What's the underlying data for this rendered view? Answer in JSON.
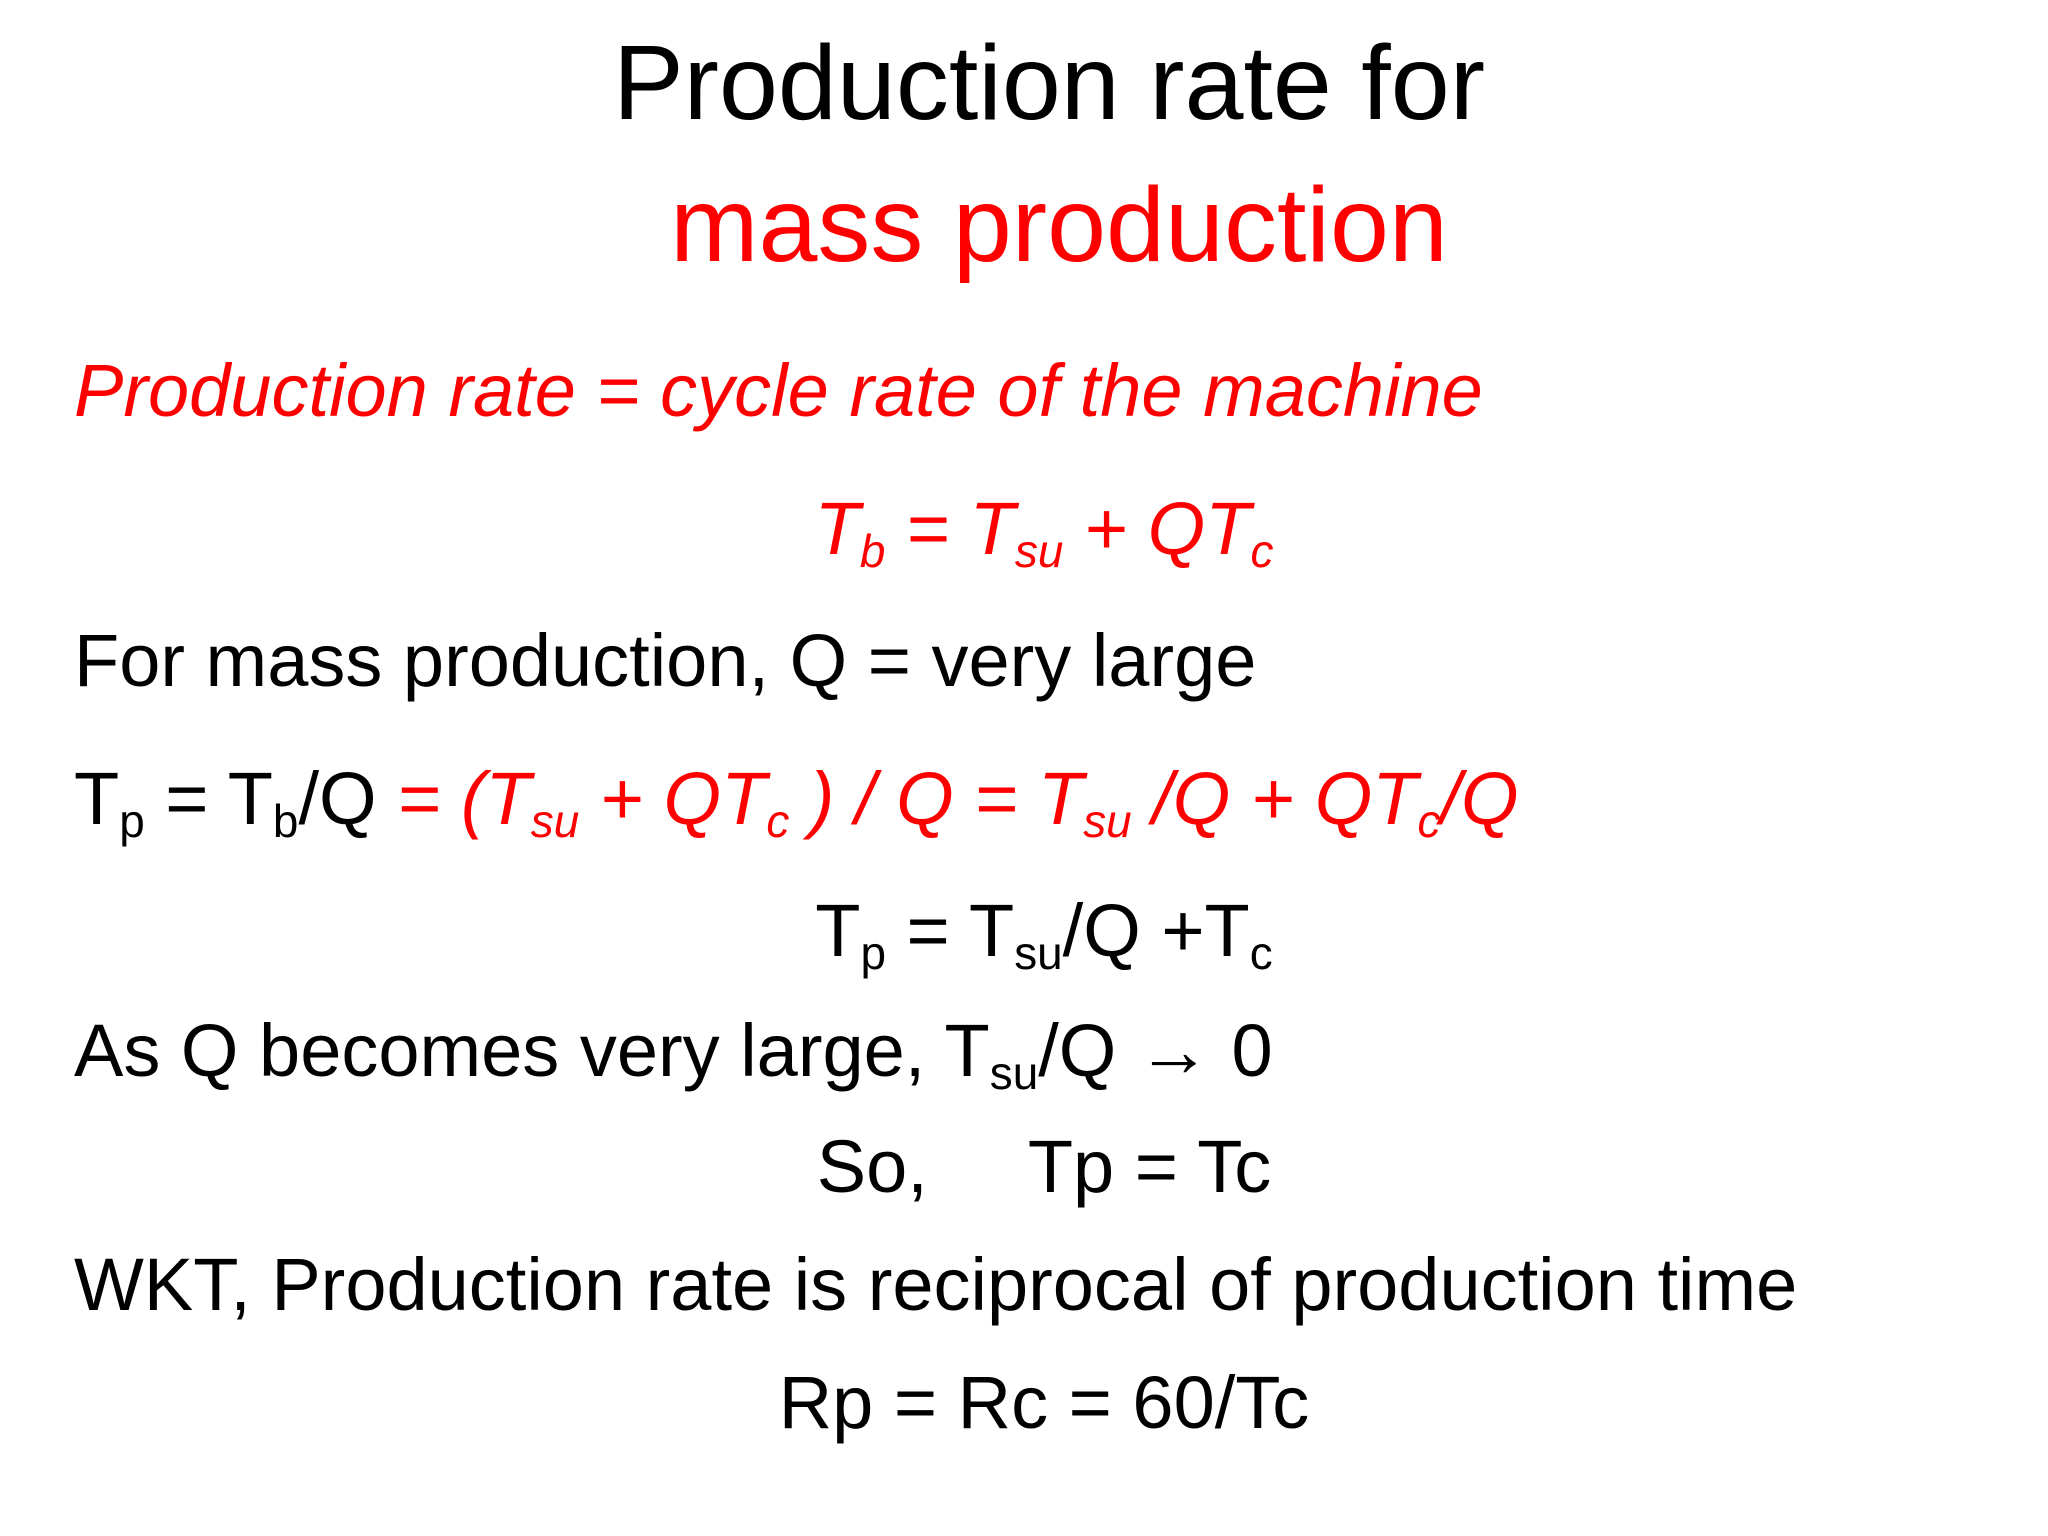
{
  "slide": {
    "title_line1": "Production rate for",
    "title_line2": "mass production",
    "line1": "Production rate = cycle rate of the machine",
    "eq1": {
      "a": "T",
      "a_sub": "b",
      "b": " = T",
      "b_sub": "su",
      "c": " + QT",
      "c_sub": "c"
    },
    "line3": "For mass production, Q = very large",
    "eq2": {
      "p1": "T",
      "p1_sub": "p",
      "p2": " = T",
      "p2_sub": "b",
      "p3": "/Q ",
      "r1": "= (T",
      "r1_sub": "su",
      "r2": " + QT",
      "r2_sub": "c",
      "r3": " ) / Q = T",
      "r3_sub": "su",
      "r4": " /Q + QT",
      "r4_sub": "c",
      "r5": "/Q"
    },
    "eq3": {
      "a": "T",
      "a_sub": "p",
      "b": " = T",
      "b_sub": "su",
      "c": "/Q +T",
      "c_sub": "c"
    },
    "line6": {
      "a": "As Q becomes very large, T",
      "a_sub": "su",
      "b": "/Q ",
      "arrow": "→",
      "c": " 0"
    },
    "line7": {
      "a": "So,",
      "b": "Tp = Tc"
    },
    "line8": "WKT, Production rate is reciprocal of production time",
    "line9": "Rp = Rc = 60/Tc"
  },
  "colors": {
    "accent": "#ff0000",
    "text": "#000000",
    "background": "#ffffff"
  }
}
